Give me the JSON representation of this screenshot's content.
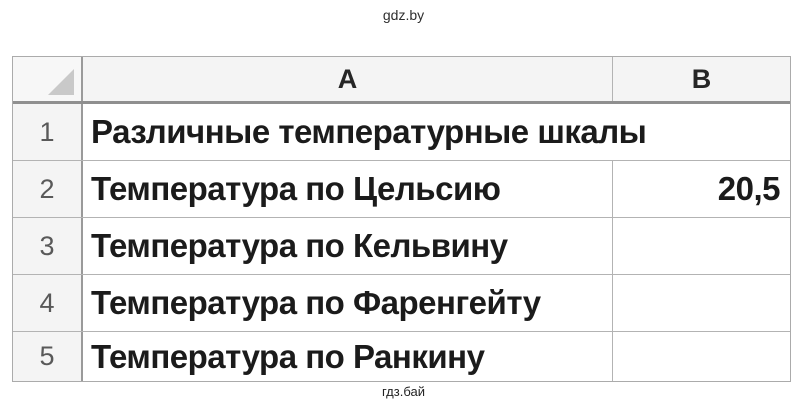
{
  "page": {
    "watermark_top": "gdz.by",
    "watermark_bottom": "гдз.бай"
  },
  "spreadsheet": {
    "columns": [
      {
        "letter": "A"
      },
      {
        "letter": "B"
      }
    ],
    "rows": [
      {
        "number": "1",
        "a": "Различные температурные шкалы",
        "b": ""
      },
      {
        "number": "2",
        "a": "Температура по Цельсию",
        "b": "20,5"
      },
      {
        "number": "3",
        "a": "Температура по Кельвину",
        "b": ""
      },
      {
        "number": "4",
        "a": "Температура по Фаренгейту",
        "b": ""
      },
      {
        "number": "5",
        "a": "Температура по Ранкину",
        "b": ""
      }
    ],
    "colors": {
      "grid_line": "#b3b3b3",
      "header_separator": "#8f8f8f",
      "header_background": "#f4f4f4",
      "cell_text": "#1b1b1b",
      "row_number_text": "#595959"
    }
  }
}
